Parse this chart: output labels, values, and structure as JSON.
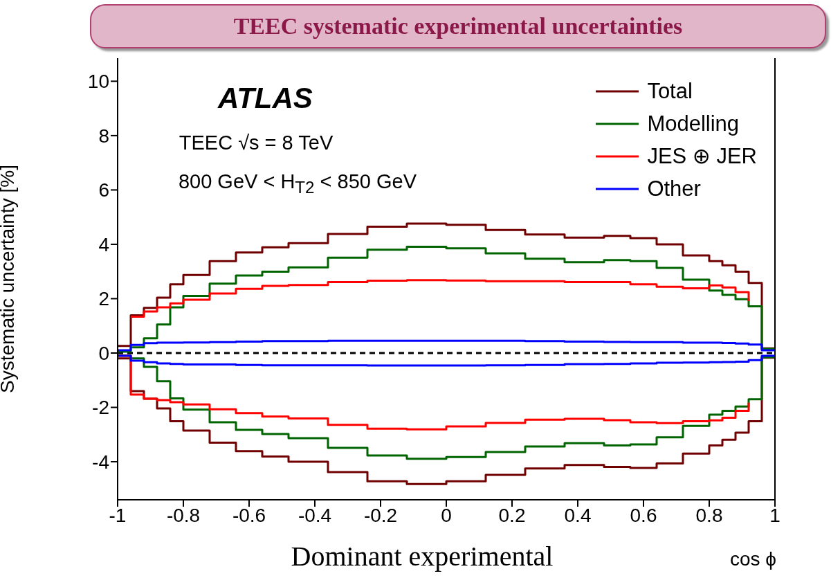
{
  "chart_data": {
    "type": "step",
    "title": "TEEC systematic experimental uncertainties",
    "xlabel": "cos ϕ",
    "ylabel": "Systematic uncertainty [%]",
    "annotations": [
      "ATLAS",
      "TEEC √s = 8 TeV",
      "800 GeV < H$_{T2}$ < 850 GeV",
      "Dominant experimental"
    ],
    "x": [
      -1,
      -0.96,
      -0.92,
      -0.88,
      -0.84,
      -0.8,
      -0.72,
      -0.64,
      -0.56,
      -0.48,
      -0.36,
      -0.24,
      -0.12,
      0,
      0.12,
      0.24,
      0.36,
      0.48,
      0.56,
      0.64,
      0.72,
      0.8,
      0.84,
      0.88,
      0.92,
      0.96,
      1
    ],
    "series": [
      {
        "name": "Total",
        "color": "#700000",
        "values": [
          0.26,
          1.39,
          1.66,
          2.04,
          2.53,
          2.87,
          3.38,
          3.7,
          3.89,
          4.04,
          4.38,
          4.65,
          4.76,
          4.72,
          4.53,
          4.36,
          4.25,
          4.31,
          4.23,
          4.0,
          3.59,
          3.38,
          3.23,
          2.99,
          2.58,
          0.17,
          0.17
        ]
      },
      {
        "color": "#700000",
        "values": [
          -0.2,
          -1.4,
          -1.68,
          -2.04,
          -2.51,
          -2.85,
          -3.3,
          -3.61,
          -3.81,
          -4.0,
          -4.38,
          -4.72,
          -4.82,
          -4.72,
          -4.48,
          -4.25,
          -4.12,
          -4.19,
          -4.23,
          -4.06,
          -3.7,
          -3.4,
          -3.19,
          -2.93,
          -2.51,
          -0.17,
          -0.17
        ]
      },
      {
        "name": "Modelling",
        "color": "#006400",
        "values": [
          0.05,
          0.21,
          0.54,
          1.05,
          1.68,
          2.1,
          2.55,
          2.85,
          2.99,
          3.15,
          3.51,
          3.8,
          3.91,
          3.85,
          3.67,
          3.47,
          3.34,
          3.42,
          3.38,
          3.13,
          2.7,
          2.3,
          2.14,
          1.98,
          1.72,
          0.15,
          0.15
        ]
      },
      {
        "color": "#006400",
        "values": [
          -0.09,
          -0.2,
          -0.51,
          -1.04,
          -1.67,
          -2.08,
          -2.55,
          -2.83,
          -2.98,
          -3.13,
          -3.49,
          -3.77,
          -3.89,
          -3.83,
          -3.64,
          -3.44,
          -3.32,
          -3.4,
          -3.36,
          -3.1,
          -2.68,
          -2.27,
          -2.13,
          -1.97,
          -1.7,
          -0.15,
          -0.15
        ]
      },
      {
        "name": "JES ⊕ JER",
        "color": "#ff0000",
        "values": [
          null,
          1.34,
          1.53,
          1.68,
          1.83,
          1.96,
          2.19,
          2.36,
          2.47,
          2.5,
          2.61,
          2.66,
          2.68,
          2.67,
          2.64,
          2.64,
          2.61,
          2.61,
          2.53,
          2.44,
          2.38,
          2.49,
          2.41,
          2.24,
          1.91,
          null,
          null
        ]
      },
      {
        "color": "#ff0000",
        "values": [
          -0.1,
          -1.53,
          -1.68,
          -1.73,
          -1.81,
          -1.89,
          -2.07,
          -2.21,
          -2.34,
          -2.41,
          -2.64,
          -2.78,
          -2.81,
          -2.7,
          -2.57,
          -2.45,
          -2.42,
          -2.47,
          -2.55,
          -2.58,
          -2.51,
          -2.48,
          -2.38,
          -2.13,
          -1.83,
          null,
          null
        ]
      },
      {
        "name": "Other",
        "color": "#0000ff",
        "values": [
          0.1,
          0.3,
          0.36,
          0.38,
          0.38,
          0.39,
          0.4,
          0.42,
          0.44,
          0.44,
          0.45,
          0.45,
          0.45,
          0.45,
          0.45,
          0.44,
          0.42,
          0.41,
          0.4,
          0.4,
          0.38,
          0.38,
          0.37,
          0.35,
          0.31,
          0.1,
          0.1
        ]
      },
      {
        "color": "#0000ff",
        "values": [
          -0.1,
          -0.28,
          -0.34,
          -0.38,
          -0.4,
          -0.42,
          -0.42,
          -0.44,
          -0.45,
          -0.45,
          -0.45,
          -0.46,
          -0.46,
          -0.46,
          -0.45,
          -0.44,
          -0.41,
          -0.4,
          -0.38,
          -0.36,
          -0.35,
          -0.34,
          -0.33,
          -0.32,
          -0.26,
          -0.1,
          -0.1
        ]
      }
    ],
    "xlim": [
      -1,
      1
    ],
    "xticks": [
      -1,
      -0.8,
      -0.6,
      -0.4,
      -0.2,
      0,
      0.2,
      0.4,
      0.6,
      0.8,
      1
    ],
    "ylim": [
      -5.4,
      10.85
    ],
    "yticks": [
      -4,
      -2,
      0,
      2,
      4,
      6,
      8,
      10
    ],
    "ref_lines": [
      {
        "axis": "y",
        "value": 0,
        "color": "#000000",
        "line_style": "dashed"
      }
    ],
    "legend": "top right",
    "line_style": "solid",
    "marker": "none"
  }
}
